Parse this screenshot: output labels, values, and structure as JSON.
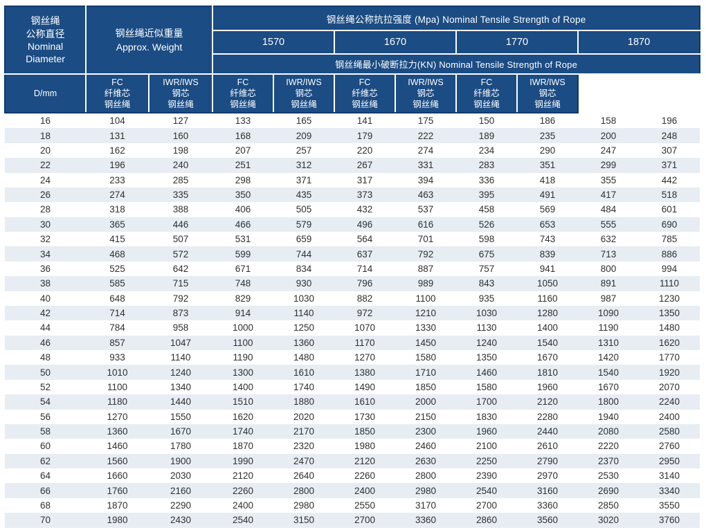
{
  "colors": {
    "header_bg": "#1b4c83",
    "header_text": "#ffffff",
    "stripe": "#e7edf3",
    "text": "#2f2f2f",
    "header_edge": "#0f3a6b"
  },
  "table": {
    "diameter_header": [
      "钢丝绳",
      "公称直径",
      "Nominal",
      "Diameter"
    ],
    "weight_header": [
      "钢丝绳近似重量",
      "Approx. Weight"
    ],
    "tensile_title": "钢丝绳公称抗拉强度 (Mpa) Nominal Tensile Strength of Rope",
    "grades": [
      "1570",
      "1670",
      "1770",
      "1870"
    ],
    "breaking_title": "钢丝绳最小破断拉力(KN) Nominal Tensile Strength of Rope",
    "d_mm": "D/mm",
    "fc_header": [
      "FC",
      "纤维芯",
      "钢丝绳"
    ],
    "iwr_header": [
      "IWR/IWS",
      "钢芯",
      "钢丝绳"
    ],
    "rows": [
      [
        16,
        104,
        127,
        133,
        165,
        141,
        175,
        150,
        186,
        158,
        196
      ],
      [
        18,
        131,
        160,
        168,
        209,
        179,
        222,
        189,
        235,
        200,
        248
      ],
      [
        20,
        162,
        198,
        207,
        257,
        220,
        274,
        234,
        290,
        247,
        307
      ],
      [
        22,
        196,
        240,
        251,
        312,
        267,
        331,
        283,
        351,
        299,
        371
      ],
      [
        24,
        233,
        285,
        298,
        371,
        317,
        394,
        336,
        418,
        355,
        442
      ],
      [
        26,
        274,
        335,
        350,
        435,
        373,
        463,
        395,
        491,
        417,
        518
      ],
      [
        28,
        318,
        388,
        406,
        505,
        432,
        537,
        458,
        569,
        484,
        601
      ],
      [
        30,
        365,
        446,
        466,
        579,
        496,
        616,
        526,
        653,
        555,
        690
      ],
      [
        32,
        415,
        507,
        531,
        659,
        564,
        701,
        598,
        743,
        632,
        785
      ],
      [
        34,
        468,
        572,
        599,
        744,
        637,
        792,
        675,
        839,
        713,
        886
      ],
      [
        36,
        525,
        642,
        671,
        834,
        714,
        887,
        757,
        941,
        800,
        994
      ],
      [
        38,
        585,
        715,
        748,
        930,
        796,
        989,
        843,
        1050,
        891,
        1110
      ],
      [
        40,
        648,
        792,
        829,
        1030,
        882,
        1100,
        935,
        1160,
        987,
        1230
      ],
      [
        42,
        714,
        873,
        914,
        1140,
        972,
        1210,
        1030,
        1280,
        1090,
        1350
      ],
      [
        44,
        784,
        958,
        1000,
        1250,
        1070,
        1330,
        1130,
        1400,
        1190,
        1480
      ],
      [
        46,
        857,
        1047,
        1100,
        1360,
        1170,
        1450,
        1240,
        1540,
        1310,
        1620
      ],
      [
        48,
        933,
        1140,
        1190,
        1480,
        1270,
        1580,
        1350,
        1670,
        1420,
        1770
      ],
      [
        50,
        1010,
        1240,
        1300,
        1610,
        1380,
        1710,
        1460,
        1810,
        1540,
        1920
      ],
      [
        52,
        1100,
        1340,
        1400,
        1740,
        1490,
        1850,
        1580,
        1960,
        1670,
        2070
      ],
      [
        54,
        1180,
        1440,
        1510,
        1880,
        1610,
        2000,
        1700,
        2120,
        1800,
        2240
      ],
      [
        56,
        1270,
        1550,
        1620,
        2020,
        1730,
        2150,
        1830,
        2280,
        1940,
        2400
      ],
      [
        58,
        1360,
        1670,
        1740,
        2170,
        1850,
        2300,
        1960,
        2440,
        2080,
        2580
      ],
      [
        60,
        1460,
        1780,
        1870,
        2320,
        1980,
        2460,
        2100,
        2610,
        2220,
        2760
      ],
      [
        62,
        1560,
        1900,
        1990,
        2470,
        2120,
        2630,
        2250,
        2790,
        2370,
        2950
      ],
      [
        64,
        1660,
        2030,
        2120,
        2640,
        2260,
        2800,
        2390,
        2970,
        2530,
        3140
      ],
      [
        66,
        1760,
        2160,
        2260,
        2800,
        2400,
        2980,
        2540,
        3160,
        2690,
        3340
      ],
      [
        68,
        1870,
        2290,
        2400,
        2980,
        2550,
        3170,
        2700,
        3360,
        2850,
        3550
      ],
      [
        70,
        1980,
        2430,
        2540,
        3150,
        2700,
        3360,
        2860,
        3560,
        3020,
        3760
      ]
    ]
  }
}
